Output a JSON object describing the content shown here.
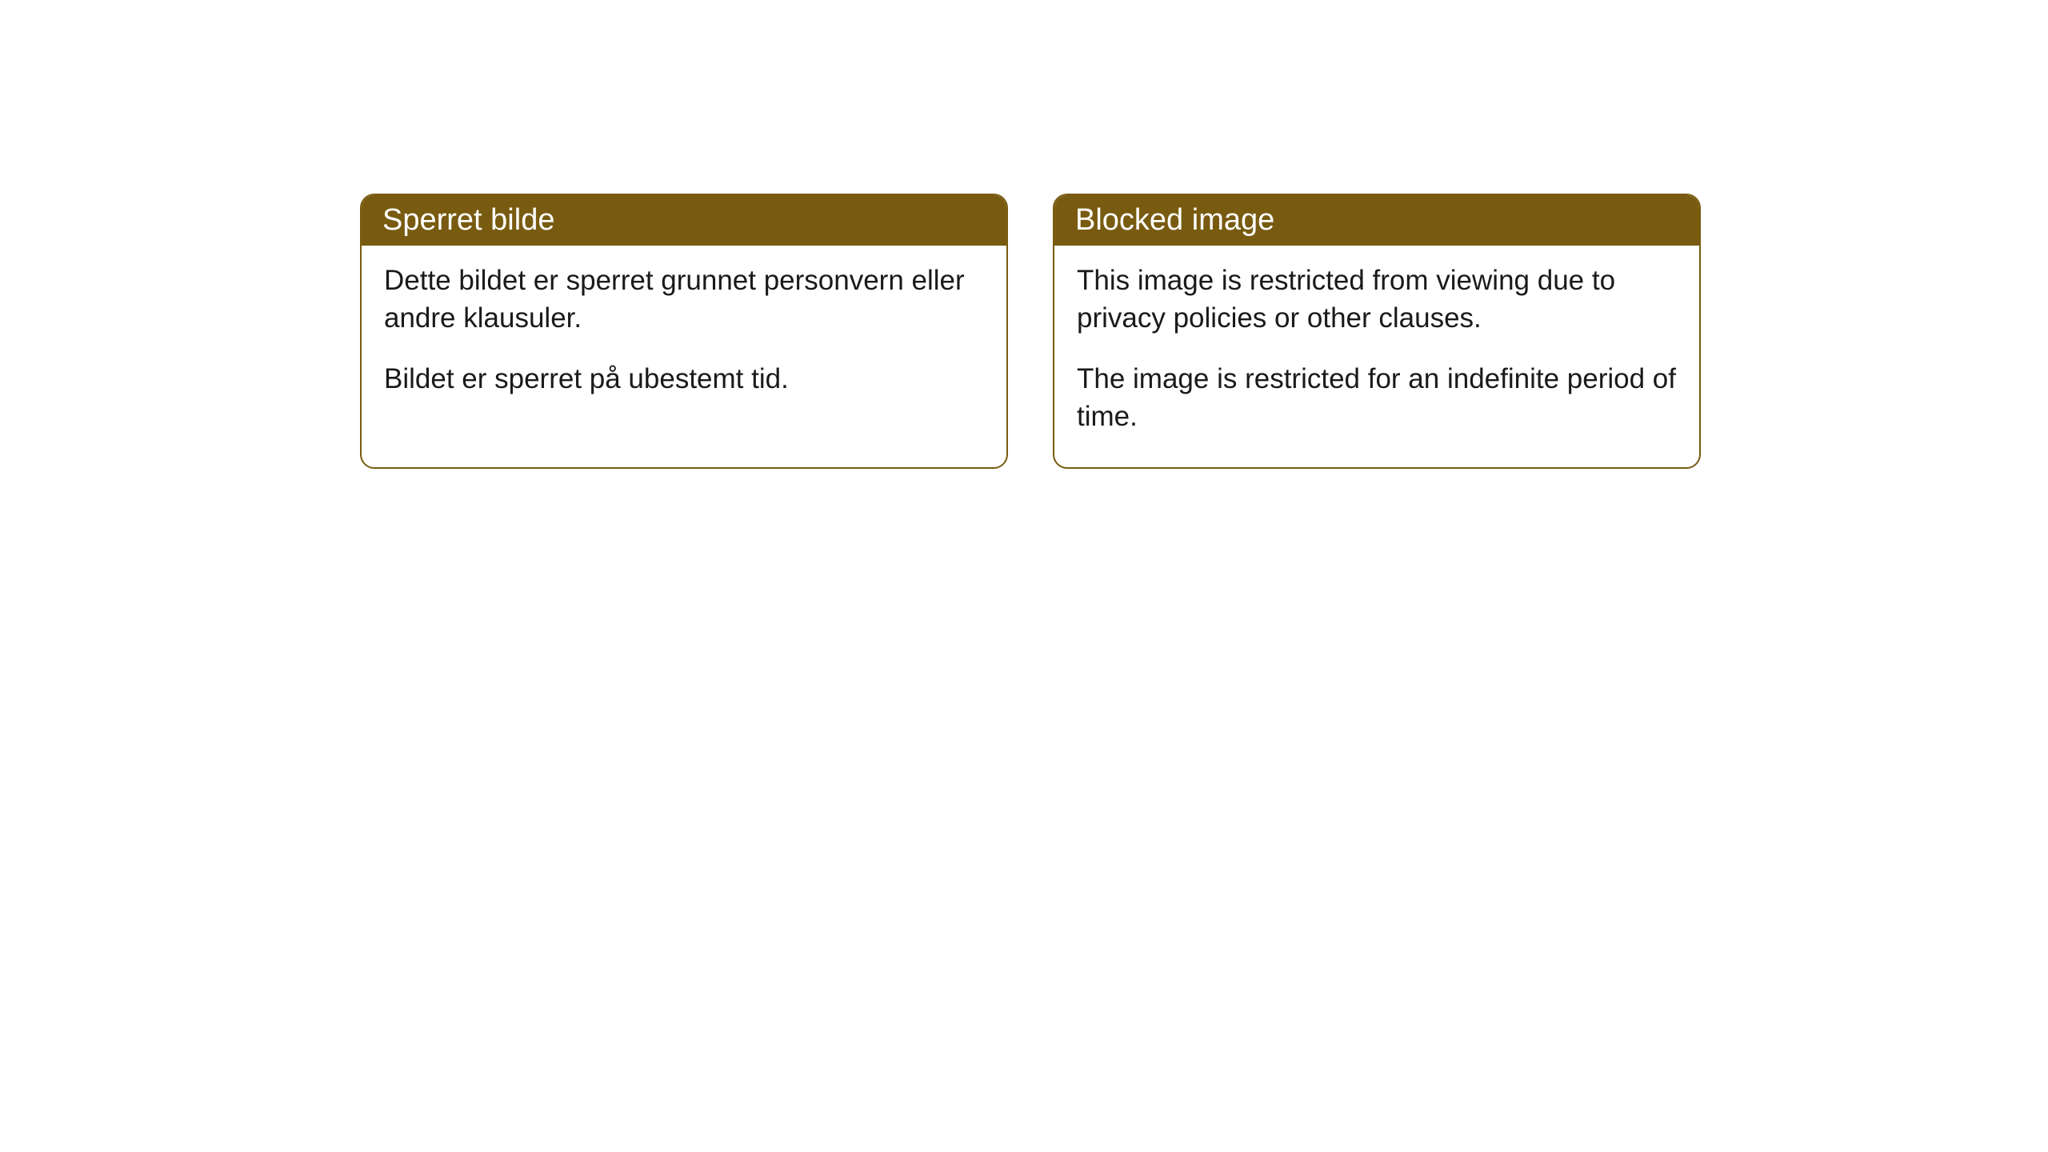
{
  "cards": [
    {
      "title": "Sperret bilde",
      "para1": "Dette bildet er sperret grunnet personvern eller andre klausuler.",
      "para2": "Bildet er sperret på ubestemt tid."
    },
    {
      "title": "Blocked image",
      "para1": "This image is restricted from viewing due to privacy policies or other clauses.",
      "para2": "The image is restricted for an indefinite period of time."
    }
  ],
  "style": {
    "header_bg": "#785b10",
    "header_text_color": "#ffffff",
    "border_color": "#785b10",
    "body_text_color": "#1a1a1a",
    "body_bg": "#ffffff",
    "border_radius": 18,
    "title_fontsize": 38,
    "body_fontsize": 35
  }
}
